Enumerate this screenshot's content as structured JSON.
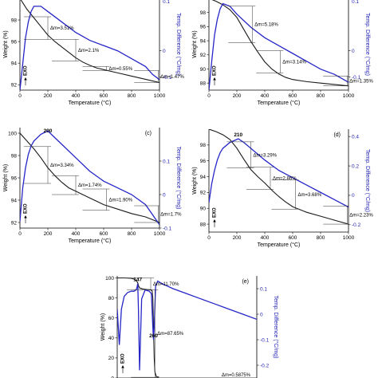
{
  "chart_data": [
    {
      "id": "a",
      "type": "line",
      "panel_label": "",
      "xlabel": "Temperature (°C)",
      "ylabel": "Weight (%)",
      "y2label": "Temp. Difference (°C/mg)",
      "xlim": [
        0,
        1000
      ],
      "ylim": [
        91.5,
        100
      ],
      "y2lim": [
        -0.15,
        0.2
      ],
      "xticks": [
        0,
        200,
        400,
        600,
        800,
        1000
      ],
      "yticks": [
        92,
        94,
        96,
        98
      ],
      "y2ticks": [
        0,
        -0.1
      ],
      "y2tick_labels": [
        "0",
        "-0.1"
      ],
      "top_labels": [
        "0.1"
      ],
      "series": [
        {
          "role": "weight",
          "x": [
            0,
            50,
            100,
            150,
            200,
            250,
            300,
            350,
            400,
            450,
            500,
            550,
            600,
            700,
            800,
            900,
            1000
          ],
          "y": [
            100,
            99.0,
            98.2,
            97.4,
            96.6,
            96.0,
            95.5,
            95.0,
            94.5,
            94.1,
            93.8,
            93.55,
            93.4,
            93.1,
            92.8,
            92.5,
            92.2
          ]
        },
        {
          "role": "dta",
          "x": [
            0,
            20,
            40,
            60,
            80,
            100,
            150,
            200,
            300,
            400,
            500,
            600,
            700,
            800,
            900,
            950,
            1000
          ],
          "y": [
            -0.15,
            -0.05,
            0.05,
            0.11,
            0.15,
            0.17,
            0.17,
            0.15,
            0.11,
            0.07,
            0.04,
            0.02,
            0.0,
            -0.03,
            -0.06,
            -0.09,
            -0.11
          ]
        }
      ],
      "steps": [
        {
          "label": "Δm=3.51%",
          "x": 200,
          "y1": 98.3,
          "y2": 96.2
        },
        {
          "label": "Δm=2.1%",
          "x": 400,
          "y1": 96.2,
          "y2": 94.2
        },
        {
          "label": "Δm=0.55%",
          "x": 620,
          "y1": 93.7,
          "y2": 93.3
        },
        {
          "label": "Δm=1.47%",
          "x": 990,
          "y1": 93.3,
          "y2": 92.2
        }
      ],
      "peaks": []
    },
    {
      "id": "b",
      "type": "line",
      "panel_label": "",
      "xlabel": "Temperature (°C)",
      "ylabel": "Weight (%)",
      "y2label": "Temp. Difference (°C/mg)",
      "xlim": [
        0,
        1000
      ],
      "ylim": [
        87,
        100
      ],
      "y2lim": [
        -0.15,
        0.2
      ],
      "xticks": [
        0,
        200,
        400,
        600,
        800,
        1000
      ],
      "yticks": [
        88,
        90,
        92,
        94,
        96,
        98
      ],
      "y2ticks": [
        0,
        -0.1
      ],
      "y2tick_labels": [
        "0",
        "-0.1"
      ],
      "top_labels": [
        "0.1"
      ],
      "series": [
        {
          "role": "weight",
          "x": [
            0,
            50,
            100,
            150,
            200,
            250,
            300,
            350,
            400,
            450,
            500,
            550,
            600,
            700,
            800,
            900,
            1000
          ],
          "y": [
            100,
            99.6,
            99.1,
            98.4,
            97.3,
            95.6,
            93.9,
            92.4,
            91.0,
            90.0,
            89.3,
            88.8,
            88.5,
            88.2,
            88.0,
            87.8,
            87.6
          ]
        },
        {
          "role": "dta",
          "x": [
            0,
            20,
            40,
            60,
            80,
            100,
            150,
            200,
            300,
            400,
            500,
            600,
            700,
            800,
            900,
            1000
          ],
          "y": [
            -0.15,
            -0.04,
            0.06,
            0.12,
            0.16,
            0.18,
            0.17,
            0.14,
            0.09,
            0.05,
            0.02,
            -0.01,
            -0.04,
            -0.07,
            -0.09,
            -0.12
          ]
        }
      ],
      "steps": [
        {
          "label": "Δm=5.18%",
          "x": 310,
          "y1": 98.9,
          "y2": 93.7
        },
        {
          "label": "Δm=3.14%",
          "x": 510,
          "y1": 92.6,
          "y2": 89.4
        },
        {
          "label": "Δm=1.35%",
          "x": 990,
          "y1": 89.0,
          "y2": 87.6
        }
      ],
      "peaks": []
    },
    {
      "id": "c",
      "type": "line",
      "panel_label": "(c)",
      "xlabel": "Temperature (°C)",
      "ylabel": "Weight (%)",
      "y2label": "Temp. Difference (°C/mg)",
      "xlim": [
        0,
        1000
      ],
      "ylim": [
        91.5,
        100.5
      ],
      "y2lim": [
        -0.1,
        0.2
      ],
      "xticks": [
        0,
        200,
        400,
        600,
        800,
        1000
      ],
      "yticks": [
        92,
        94,
        96,
        98,
        100
      ],
      "y2ticks": [
        0.1,
        0,
        -0.1
      ],
      "y2tick_labels": [
        "0.1",
        "0",
        "-0.1"
      ],
      "top_labels": [],
      "series": [
        {
          "role": "weight",
          "x": [
            0,
            50,
            100,
            150,
            200,
            250,
            300,
            350,
            400,
            450,
            500,
            550,
            600,
            700,
            800,
            900,
            1000
          ],
          "y": [
            100,
            99.3,
            98.6,
            97.8,
            96.9,
            96.2,
            95.6,
            95.1,
            94.8,
            94.5,
            94.2,
            93.9,
            93.6,
            93.2,
            92.8,
            92.5,
            92.0
          ]
        },
        {
          "role": "dta",
          "x": [
            0,
            20,
            40,
            60,
            80,
            100,
            150,
            200,
            250,
            300,
            400,
            500,
            600,
            700,
            800,
            900,
            1000
          ],
          "y": [
            -0.08,
            0.02,
            0.08,
            0.12,
            0.145,
            0.16,
            0.18,
            0.19,
            0.17,
            0.15,
            0.11,
            0.07,
            0.04,
            0.02,
            0.0,
            -0.03,
            -0.09
          ]
        }
      ],
      "steps": [
        {
          "label": "Δm=3.34%",
          "x": 200,
          "y1": 98.8,
          "y2": 95.5
        },
        {
          "label": "Δm=1.74%",
          "x": 400,
          "y1": 96.2,
          "y2": 94.5
        },
        {
          "label": "Δm=1.90%",
          "x": 620,
          "y1": 95.0,
          "y2": 93.1
        },
        {
          "label": "Δm=1.7%",
          "x": 990,
          "y1": 93.5,
          "y2": 92.0
        }
      ],
      "peaks": [
        {
          "label": "200",
          "x": 200
        }
      ]
    },
    {
      "id": "d",
      "type": "line",
      "panel_label": "(d)",
      "xlabel": "Temperature (°C)",
      "ylabel": "Weight (%)",
      "y2label": "Temp. Difference (°C/mg)",
      "xlim": [
        0,
        1000
      ],
      "ylim": [
        87,
        100
      ],
      "y2lim": [
        -0.25,
        0.45
      ],
      "xticks": [
        0,
        200,
        400,
        600,
        800,
        1000
      ],
      "yticks": [
        88,
        90,
        92,
        94,
        96,
        98
      ],
      "y2ticks": [
        0.4,
        0.2,
        0,
        -0.2
      ],
      "y2tick_labels": [
        "0.4",
        "0.2",
        "0",
        "-0.2"
      ],
      "top_labels": [],
      "series": [
        {
          "role": "weight",
          "x": [
            0,
            50,
            100,
            150,
            200,
            250,
            300,
            350,
            400,
            450,
            500,
            550,
            600,
            700,
            800,
            900,
            1000
          ],
          "y": [
            100,
            99.7,
            99.3,
            98.7,
            97.6,
            96.2,
            94.9,
            94.0,
            93.2,
            92.3,
            91.5,
            90.8,
            90.2,
            89.5,
            89.0,
            88.5,
            88.0
          ]
        },
        {
          "role": "dta",
          "x": [
            0,
            20,
            40,
            60,
            80,
            100,
            150,
            200,
            210,
            250,
            300,
            400,
            500,
            600,
            700,
            800,
            900,
            1000
          ],
          "y": [
            -0.05,
            0.08,
            0.17,
            0.24,
            0.29,
            0.32,
            0.36,
            0.38,
            0.385,
            0.36,
            0.32,
            0.24,
            0.17,
            0.12,
            0.07,
            0.02,
            -0.03,
            -0.08
          ]
        }
      ],
      "steps": [
        {
          "label": "Δm=3.29%",
          "x": 300,
          "y1": 98.4,
          "y2": 95.1
        },
        {
          "label": "Δm=2.86%",
          "x": 440,
          "y1": 95.2,
          "y2": 92.4
        },
        {
          "label": "Δm=3.68%",
          "x": 620,
          "y1": 93.6,
          "y2": 89.9
        },
        {
          "label": "Δm=2.23%",
          "x": 990,
          "y1": 90.3,
          "y2": 88.0
        }
      ],
      "peaks": [
        {
          "label": "210",
          "x": 210
        }
      ]
    },
    {
      "id": "e",
      "type": "line",
      "panel_label": "(e)",
      "xlabel": "",
      "ylabel": "Weight (%)",
      "y2label": "Temp. Difference (°C/mg)",
      "xlim": [
        0,
        1000
      ],
      "ylim": [
        0,
        102
      ],
      "y2lim": [
        -0.25,
        0.15
      ],
      "xticks": [],
      "yticks": [
        0,
        20,
        40,
        60,
        80,
        100
      ],
      "y2ticks": [
        0.1,
        0,
        -0.1,
        -0.2
      ],
      "y2tick_labels": [
        "0.1",
        "0",
        "-0.1",
        "-0.2"
      ],
      "top_labels": [],
      "series": [
        {
          "role": "weight",
          "x": [
            0,
            50,
            100,
            120,
            135,
            142,
            147,
            152,
            160,
            180,
            200,
            220,
            240,
            250,
            255,
            260,
            265,
            270,
            280,
            300
          ],
          "y": [
            100,
            100,
            99.6,
            98.8,
            97.5,
            96.3,
            95.2,
            92.5,
            90.0,
            89.1,
            88.6,
            88.3,
            88.0,
            87.0,
            80.0,
            50.0,
            20.0,
            6.0,
            1.5,
            0.8
          ]
        },
        {
          "role": "dta",
          "x": [
            0,
            15,
            30,
            50,
            75,
            100,
            120,
            135,
            142,
            147,
            152,
            160,
            175,
            200,
            230,
            245,
            255,
            260,
            265,
            275,
            290,
            320,
            400,
            500,
            600,
            700,
            800,
            900,
            1000
          ],
          "y": [
            0.02,
            -0.12,
            0.02,
            0.07,
            0.085,
            0.09,
            0.09,
            0.095,
            0.105,
            0.12,
            0.02,
            -0.22,
            0.06,
            0.095,
            0.09,
            0.08,
            -0.05,
            -0.1,
            -0.05,
            0.11,
            0.13,
            0.12,
            0.1,
            0.08,
            0.06,
            0.04,
            0.02,
            0.0,
            -0.02
          ]
        }
      ],
      "steps": [
        {
          "label": "Δm=11.70%",
          "x": 240,
          "y1": 100,
          "y2": 88.3
        },
        {
          "label": "Δm=87.65%",
          "x": 270,
          "y1": 88.3,
          "y2": 0.7
        }
      ],
      "peaks": [
        {
          "label": "147",
          "x": 147
        },
        {
          "label": "260",
          "x": 260
        }
      ],
      "footnote": "Δm=0.5875%"
    }
  ],
  "exo_label": "EXO"
}
